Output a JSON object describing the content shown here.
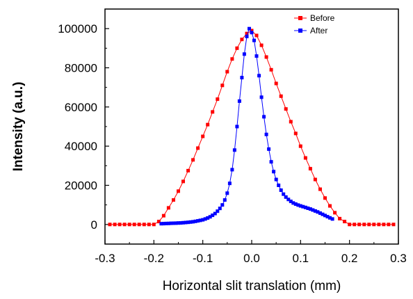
{
  "chart_data": {
    "type": "line",
    "title": "",
    "xlabel": "Horizontal slit translation (mm)",
    "ylabel": "Intensity (a.u.)",
    "xlim": [
      -0.3,
      0.3
    ],
    "ylim": [
      -10000,
      110000
    ],
    "x_ticks": [
      -0.3,
      -0.2,
      -0.1,
      0.0,
      0.1,
      0.2,
      0.3
    ],
    "x_tick_labels": [
      "-0.3",
      "-0.2",
      "-0.1",
      "0.0",
      "0.1",
      "0.2",
      "0.3"
    ],
    "y_ticks": [
      0,
      20000,
      40000,
      60000,
      80000,
      100000
    ],
    "y_tick_labels": [
      "0",
      "20000",
      "40000",
      "60000",
      "80000",
      "100000"
    ],
    "grid": false,
    "legend_position": "top-right",
    "series": [
      {
        "name": "Before",
        "color": "#ff0000",
        "marker": "square",
        "x": [
          -0.29,
          -0.28,
          -0.27,
          -0.26,
          -0.25,
          -0.24,
          -0.23,
          -0.22,
          -0.21,
          -0.2,
          -0.19,
          -0.18,
          -0.17,
          -0.16,
          -0.15,
          -0.14,
          -0.13,
          -0.12,
          -0.11,
          -0.1,
          -0.09,
          -0.08,
          -0.07,
          -0.06,
          -0.05,
          -0.04,
          -0.03,
          -0.02,
          -0.01,
          0.0,
          0.01,
          0.02,
          0.03,
          0.04,
          0.05,
          0.06,
          0.07,
          0.08,
          0.09,
          0.1,
          0.11,
          0.12,
          0.13,
          0.14,
          0.15,
          0.16,
          0.17,
          0.18,
          0.19,
          0.2,
          0.21,
          0.22,
          0.23,
          0.24,
          0.25,
          0.26,
          0.27,
          0.28,
          0.29
        ],
        "values": [
          0,
          0,
          0,
          0,
          0,
          0,
          0,
          0,
          0,
          0,
          1500,
          4500,
          8500,
          12500,
          17000,
          22000,
          27500,
          33000,
          39000,
          45000,
          51000,
          57500,
          64000,
          71000,
          78000,
          84500,
          90000,
          94500,
          97500,
          99000,
          96500,
          91500,
          85500,
          79000,
          72000,
          65500,
          59000,
          52500,
          46500,
          40000,
          34000,
          28500,
          23000,
          18000,
          13500,
          9500,
          6000,
          3000,
          1500,
          0,
          0,
          0,
          0,
          0,
          0,
          0,
          0,
          0,
          0
        ]
      },
      {
        "name": "After",
        "color": "#0000ff",
        "marker": "square",
        "x": [
          -0.185,
          -0.18,
          -0.175,
          -0.17,
          -0.165,
          -0.16,
          -0.155,
          -0.15,
          -0.145,
          -0.14,
          -0.135,
          -0.13,
          -0.125,
          -0.12,
          -0.115,
          -0.11,
          -0.105,
          -0.1,
          -0.095,
          -0.09,
          -0.085,
          -0.08,
          -0.075,
          -0.07,
          -0.065,
          -0.06,
          -0.055,
          -0.05,
          -0.045,
          -0.04,
          -0.035,
          -0.03,
          -0.025,
          -0.02,
          -0.015,
          -0.01,
          -0.005,
          0.0,
          0.005,
          0.01,
          0.015,
          0.02,
          0.025,
          0.03,
          0.035,
          0.04,
          0.045,
          0.05,
          0.055,
          0.06,
          0.065,
          0.07,
          0.075,
          0.08,
          0.085,
          0.09,
          0.095,
          0.1,
          0.105,
          0.11,
          0.115,
          0.12,
          0.125,
          0.13,
          0.135,
          0.14,
          0.145,
          0.15,
          0.155,
          0.16,
          0.165
        ],
        "values": [
          400,
          450,
          500,
          550,
          600,
          650,
          700,
          750,
          800,
          900,
          1000,
          1100,
          1250,
          1400,
          1600,
          1850,
          2100,
          2400,
          2800,
          3300,
          3900,
          4700,
          5600,
          6800,
          8200,
          10000,
          12500,
          16000,
          21000,
          28000,
          38000,
          50000,
          63000,
          75000,
          87000,
          96000,
          100000,
          98000,
          94000,
          86000,
          76000,
          65000,
          55000,
          46000,
          38500,
          32000,
          27000,
          23000,
          20000,
          17500,
          15500,
          14000,
          12800,
          11800,
          11000,
          10400,
          9900,
          9500,
          9100,
          8700,
          8300,
          7900,
          7400,
          6900,
          6400,
          5800,
          5200,
          4600,
          4000,
          3400,
          2800
        ]
      }
    ]
  }
}
